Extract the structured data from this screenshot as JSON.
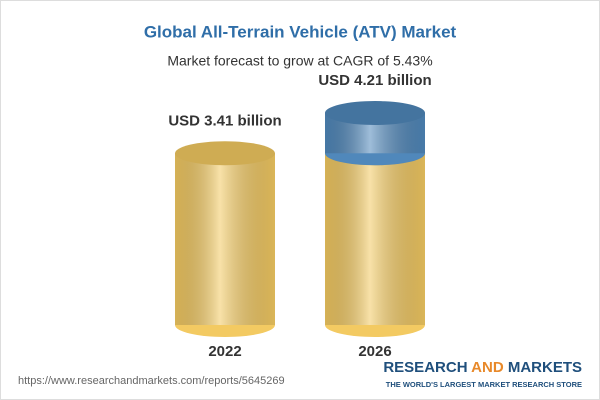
{
  "chart_data": {
    "type": "cylinder",
    "title": "Global All-Terrain Vehicle (ATV) Market",
    "subtitle": "Market forecast to grow at CAGR of 5.43%",
    "categories": [
      "2022",
      "2026"
    ],
    "values": [
      3.41,
      4.21
    ],
    "value_labels": [
      "USD 3.41 billion",
      "USD 4.21 billion"
    ],
    "color": "#f3ca62",
    "growth_color": "#5088bb",
    "source": "https://www.researchandmarkets.com/reports/5645269",
    "brand": [
      "RESEARCH",
      "AND",
      "MARKETS"
    ],
    "brand_tagline": "THE WORLD'S LARGEST MARKET RESEARCH STORE"
  }
}
